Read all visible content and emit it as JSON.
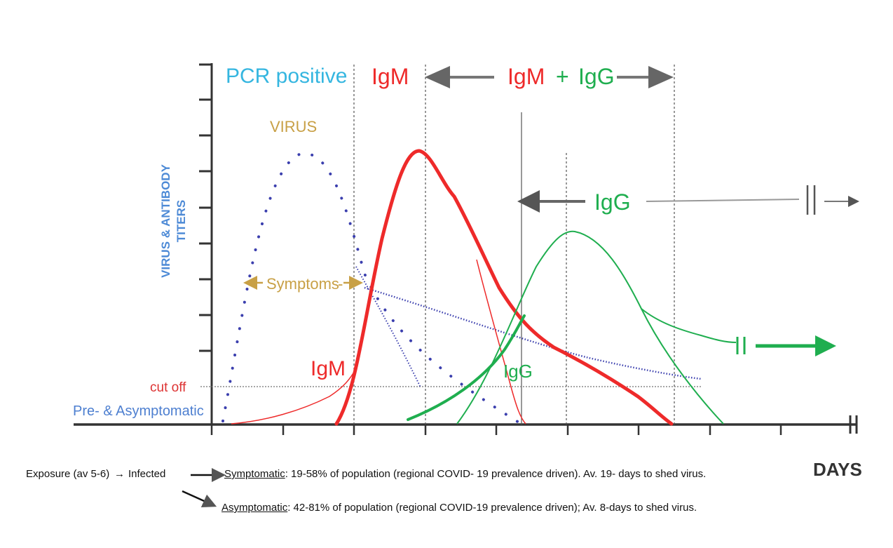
{
  "figure": {
    "y_axis_title_line1": "VIRUS & ANTIBODY",
    "y_axis_title_line2": "TITERS",
    "x_axis_title": "DAYS",
    "pcr_positive": "PCR positive",
    "igm_header": "IgM",
    "igm_igg_header_igm": "IgM",
    "igm_igg_header_plus": "+",
    "igm_igg_header_igg": "IgG",
    "virus_label": "VIRUS",
    "symptoms_label": "Symptoms",
    "igg_range_label": "IgG",
    "igm_curve_label": "IgM",
    "igg_curve_label": "IgG",
    "cutoff_label": "cut off",
    "pre_asymptomatic_label": "Pre- & Asymptomatic"
  },
  "colors": {
    "virus": "#3b3fae",
    "igm": "#ee2a2a",
    "igg": "#1fae4f",
    "pcr": "#35b6e0",
    "symptoms": "#c8a046",
    "cutoff": "#dd3333",
    "axis": "#333333",
    "arrow_gray": "#777777",
    "y_title": "#4d8ad6"
  },
  "footnote": {
    "exposure": "Exposure (av 5-6)",
    "infected": "Infected",
    "symptomatic_term": "Symptomatic",
    "symptomatic_text": ": 19-58% of population (regional COVID- 19 prevalence driven). Av. 19- days to shed virus.",
    "asymptomatic_term": "Asymptomatic",
    "asymptomatic_text": ": 42-81% of population (regional COVID-19 prevalence driven); Av. 8-days to shed virus."
  }
}
